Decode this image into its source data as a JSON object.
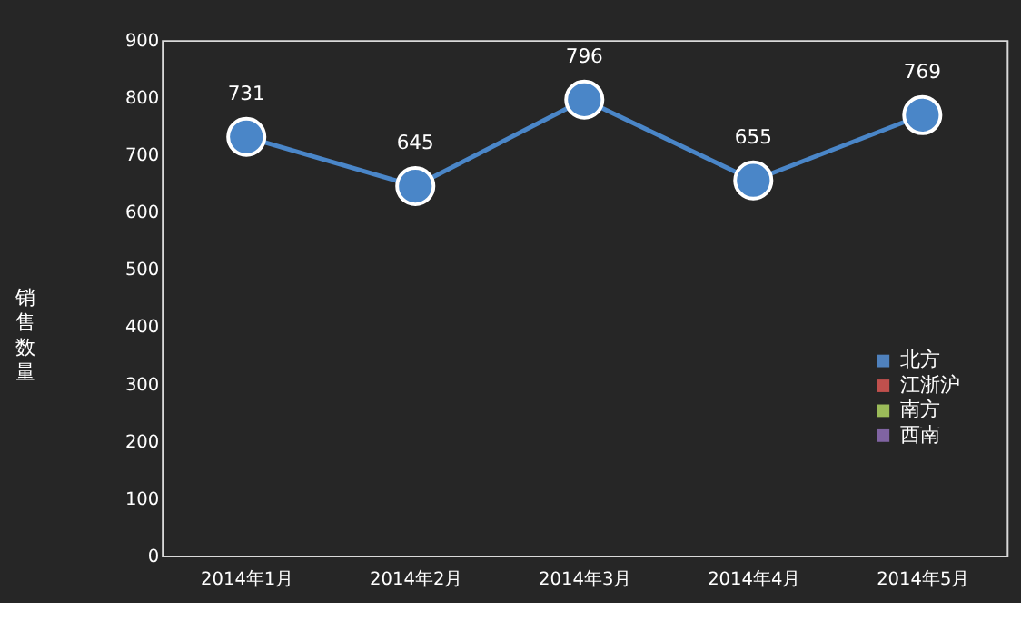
{
  "chart_data": {
    "type": "line",
    "ylabel": "销售数量",
    "categories": [
      "2014年1月",
      "2014年2月",
      "2014年3月",
      "2014年4月",
      "2014年5月"
    ],
    "ylim": [
      0,
      900
    ],
    "yticks": [
      0,
      100,
      200,
      300,
      400,
      500,
      600,
      700,
      800,
      900
    ],
    "legend": "right",
    "data_labels": true,
    "marker": "circle",
    "series": [
      {
        "color": "#4a86c8",
        "line_style": "solid",
        "values": [
          731,
          645,
          796,
          655,
          769
        ]
      },
      {
        "name": "北方",
        "color": "#4f81bd",
        "values": [
          null,
          null,
          null,
          null,
          null
        ]
      },
      {
        "name": "江浙沪",
        "color": "#c0504d",
        "values": [
          null,
          null,
          null,
          null,
          null
        ]
      },
      {
        "name": "南方",
        "color": "#9bbb59",
        "values": [
          null,
          null,
          null,
          null,
          null
        ]
      },
      {
        "name": "西南",
        "color": "#8064a2",
        "values": [
          null,
          null,
          null,
          null,
          null
        ]
      }
    ]
  }
}
